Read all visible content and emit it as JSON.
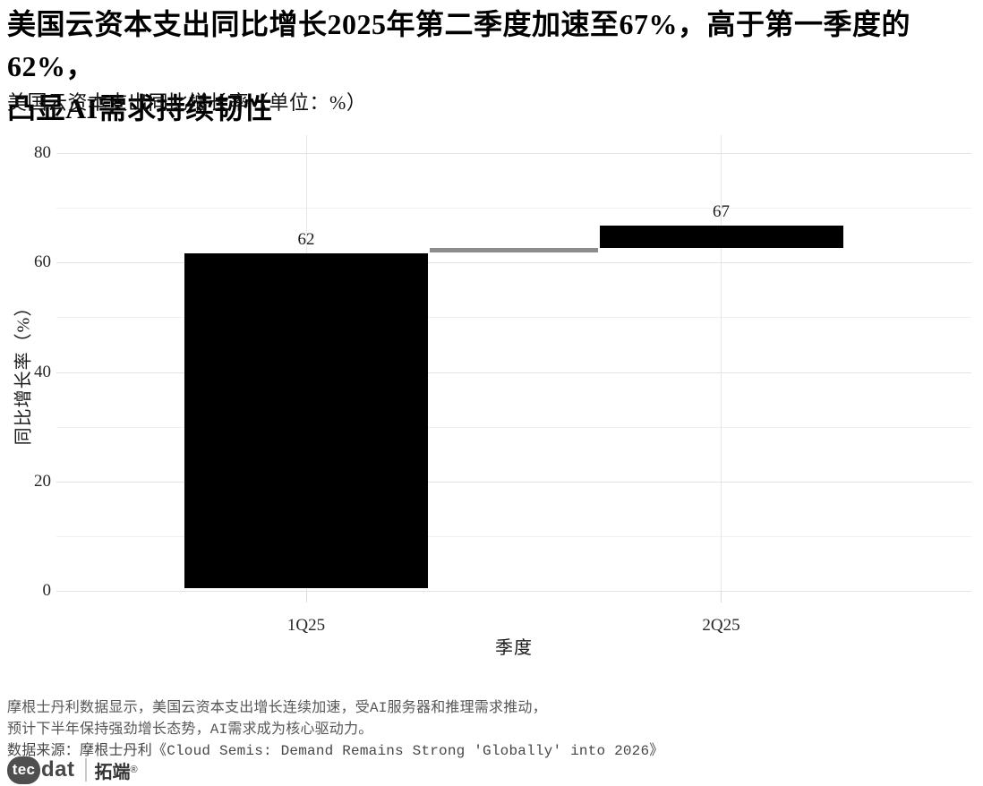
{
  "title": {
    "line1": "美国云资本支出同比增长2025年第二季度加速至67%，高于第一季度的62%，",
    "line2": "凸显AI需求持续韧性"
  },
  "subtitle": "美国云资本支出同比增长率（单位：%）",
  "footer": {
    "note_line1": "摩根士丹利数据显示，美国云资本支出增长连续加速，受AI服务器和推理需求推动，",
    "note_line2": "预计下半年保持强劲增长态势，AI需求成为核心驱动力。",
    "source": "数据来源：摩根士丹利《Cloud Semis: Demand Remains Strong 'Globally' into 2026》"
  },
  "logo": {
    "tec": "tec",
    "dat": "dat",
    "brand_cn": "拓端",
    "reg_mark": "®"
  },
  "colors": {
    "bar": "#000000",
    "connector": "#8c8c8c",
    "grid_major": "#e3e3e3",
    "grid_minor": "#f0f0f0",
    "grid_vertical": "#e7e7e7",
    "axis_tick": "#dcdcdc",
    "axis_text": "#262626",
    "value_label_text": "#1a1a1a"
  },
  "chart_data": {
    "type": "bar",
    "subtype": "waterfall",
    "title": "美国云资本支出同比增长率（单位：%）",
    "xlabel": "季度",
    "ylabel": "同比增长率（%）",
    "categories": [
      "1Q25",
      "2Q25"
    ],
    "values": [
      62,
      67
    ],
    "bars": [
      {
        "category": "1Q25",
        "start": 0.5,
        "end": 61.7,
        "label": "62"
      },
      {
        "category": "2Q25",
        "start": 62.6,
        "end": 66.7,
        "label": "67"
      }
    ],
    "connector": {
      "start_value": 61.8,
      "end_value": 62.6
    },
    "ylim": [
      0,
      83
    ],
    "yticks": [
      0,
      20,
      40,
      60,
      80
    ],
    "minor_yticks": [
      10,
      30,
      50,
      70
    ],
    "grid": true,
    "legend": "none"
  }
}
